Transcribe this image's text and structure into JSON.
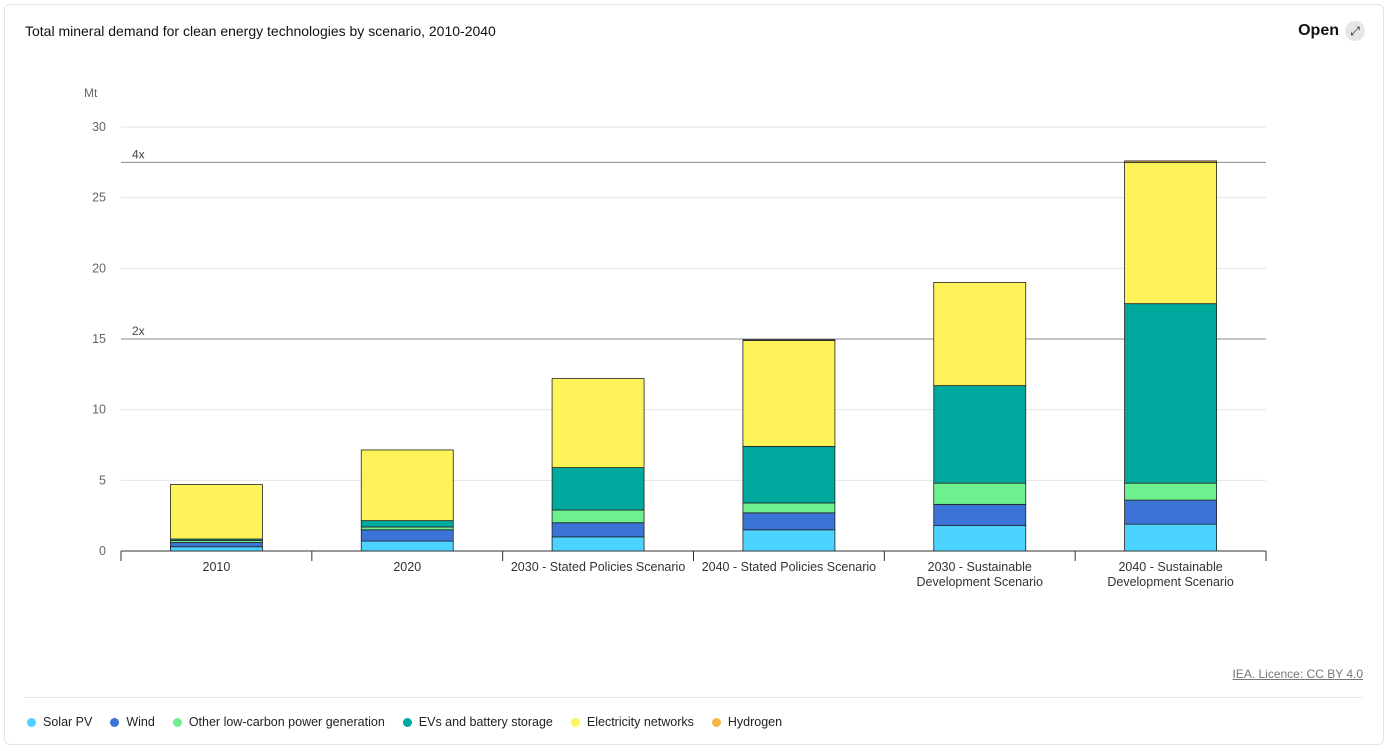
{
  "header": {
    "title": "Total mineral demand for clean energy technologies by scenario, 2010-2040",
    "open_label": "Open",
    "open_icon": "external-link-icon"
  },
  "source_label": "IEA. Licence: CC BY 4.0",
  "chart_data": {
    "type": "bar",
    "stacked": true,
    "title": "Total mineral demand for clean energy technologies by scenario, 2010-2040",
    "ylabel": "Mt",
    "xlabel": "",
    "ylim": [
      0,
      30
    ],
    "yticks": [
      0,
      5,
      10,
      15,
      20,
      25,
      30
    ],
    "grid": true,
    "legend_position": "bottom-left",
    "categories": [
      [
        "2010"
      ],
      [
        "2020"
      ],
      [
        "2030 - Stated Policies Scenario"
      ],
      [
        "2040 - Stated Policies Scenario"
      ],
      [
        "2030 - Sustainable",
        "Development Scenario"
      ],
      [
        "2040 - Sustainable",
        "Development Scenario"
      ]
    ],
    "series": [
      {
        "name": "Solar PV",
        "color": "#4cd3ff",
        "values": [
          0.3,
          0.7,
          1.0,
          1.5,
          1.8,
          1.9
        ]
      },
      {
        "name": "Wind",
        "color": "#3b73d6",
        "values": [
          0.3,
          0.8,
          1.0,
          1.2,
          1.5,
          1.7
        ]
      },
      {
        "name": "Other low-carbon power generation",
        "color": "#6ef08e",
        "values": [
          0.15,
          0.2,
          0.9,
          0.7,
          1.5,
          1.2
        ]
      },
      {
        "name": "EVs and battery storage",
        "color": "#00a99d",
        "values": [
          0.1,
          0.45,
          3.0,
          4.0,
          6.9,
          12.7
        ]
      },
      {
        "name": "Electricity networks",
        "color": "#fff35a",
        "values": [
          3.85,
          5.0,
          6.3,
          7.5,
          7.3,
          10.0
        ]
      },
      {
        "name": "Hydrogen",
        "color": "#f5b544",
        "values": [
          0,
          0,
          0,
          0.05,
          0,
          0.1
        ]
      }
    ],
    "reference_lines": [
      {
        "label": "2x",
        "value": 15
      },
      {
        "label": "4x",
        "value": 27.5
      }
    ]
  }
}
